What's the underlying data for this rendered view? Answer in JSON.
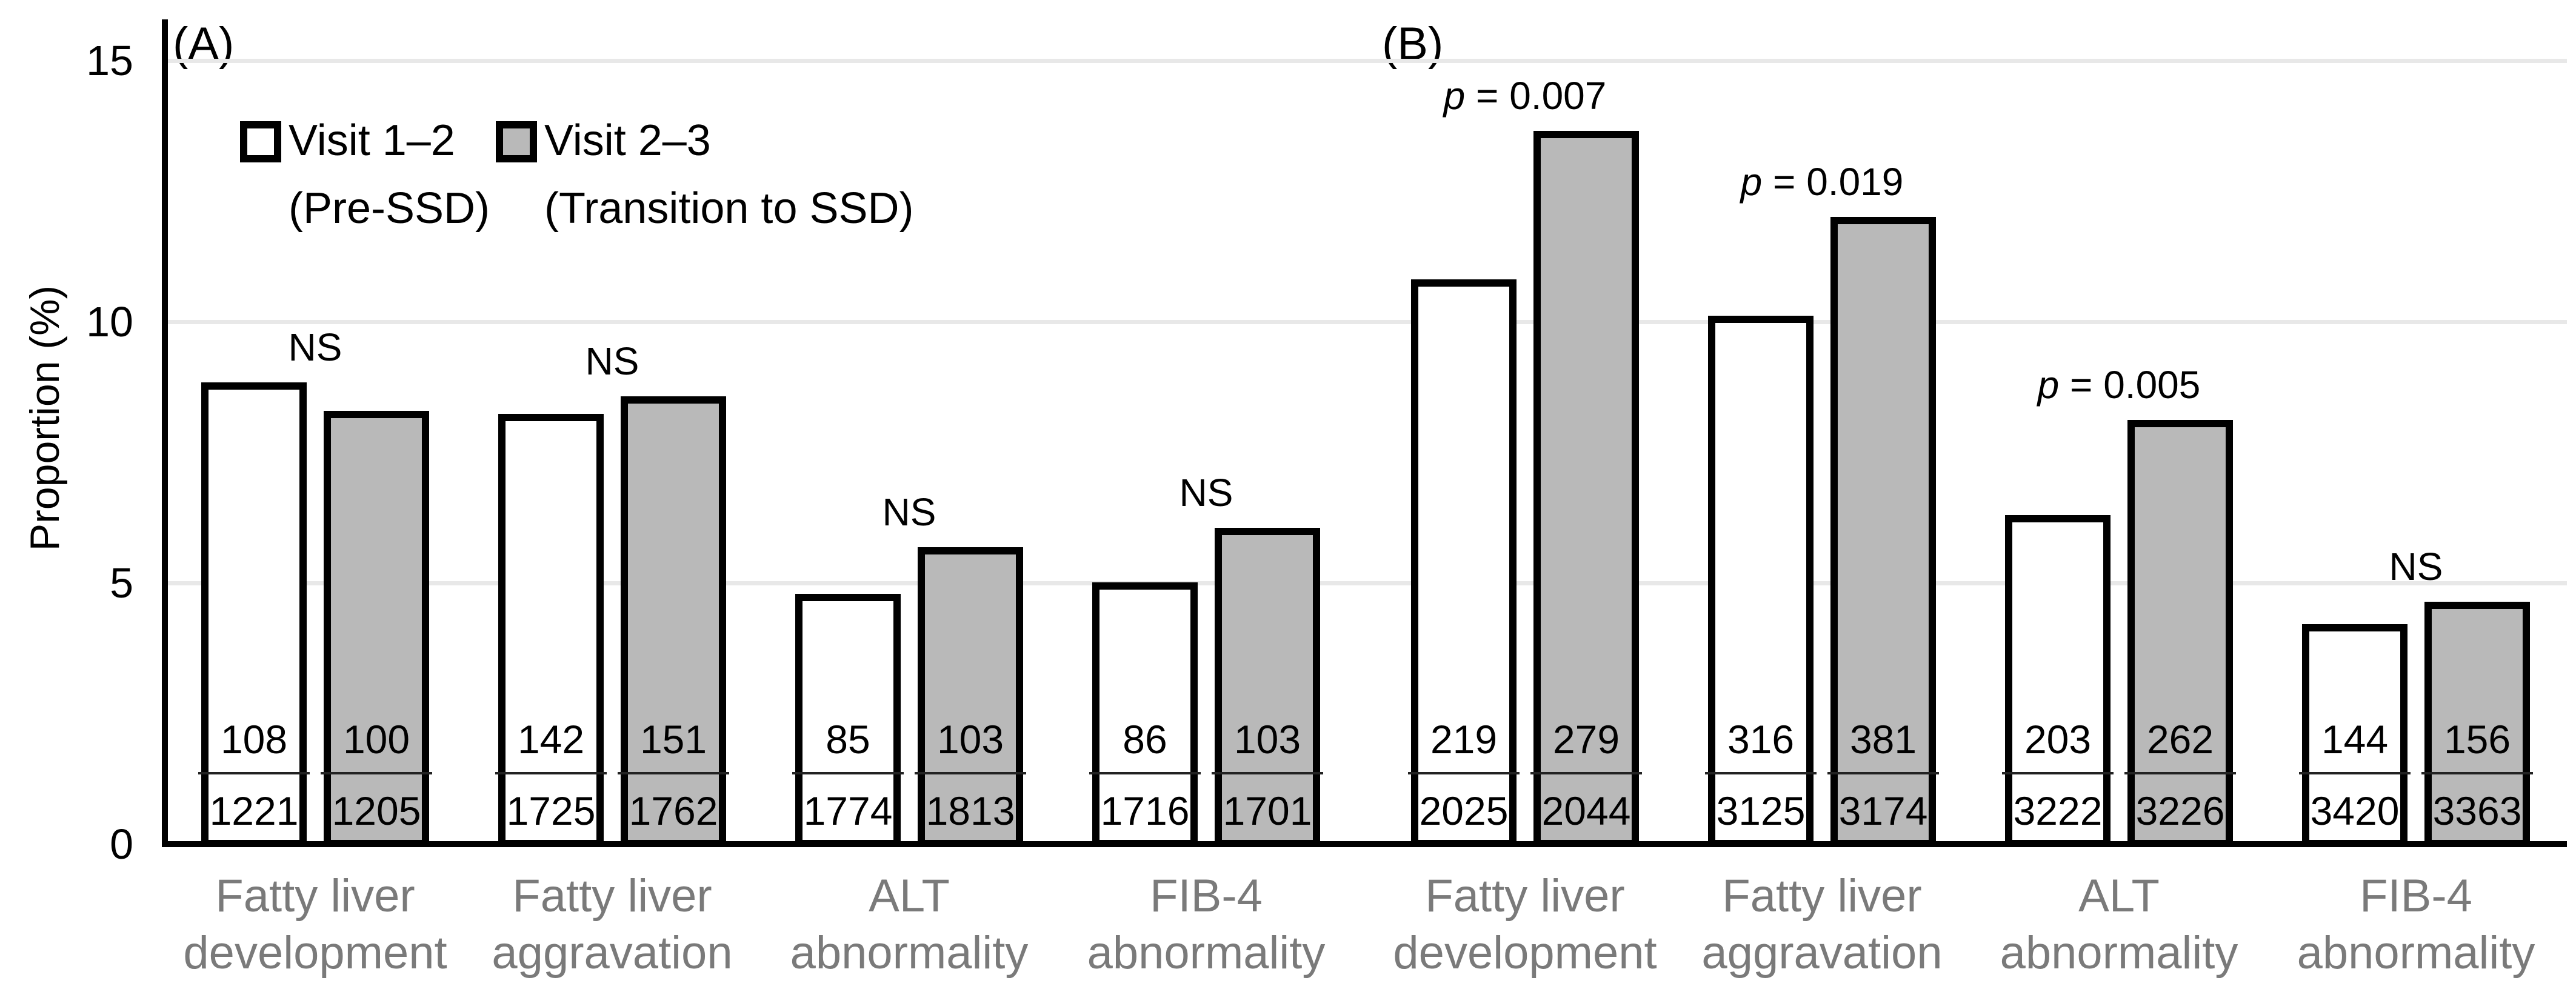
{
  "chart_data": {
    "type": "bar",
    "title": "",
    "xlabel": "",
    "ylabel": "Proportion (%)",
    "ylim": [
      0,
      15
    ],
    "yticks": [
      0,
      5,
      10,
      15
    ],
    "grid": true,
    "legend_position": "top-left",
    "colors": {
      "visit12_fill": "#ffffff",
      "visit23_fill": "#b9b9b9",
      "bar_border": "#000000",
      "gridline": "#e8e8e8",
      "axis": "#000000",
      "category_label": "#7a7a7a",
      "text": "#000000"
    },
    "legend": {
      "items": [
        {
          "label": "Visit 1–2",
          "sublabel": "(Pre-SSD)",
          "fill": "#ffffff"
        },
        {
          "label": "Visit 2–3",
          "sublabel": "(Transition to SSD)",
          "fill": "#b9b9b9"
        }
      ]
    },
    "panels": [
      {
        "label": "(A)",
        "groups": [
          {
            "category_lines": [
              "Fatty liver",
              "development"
            ],
            "significance": "NS",
            "bars": [
              {
                "series": "Visit 1–2",
                "numerator": 108,
                "denominator": 1221,
                "pct": 8.85
              },
              {
                "series": "Visit 2–3",
                "numerator": 100,
                "denominator": 1205,
                "pct": 8.3
              }
            ]
          },
          {
            "category_lines": [
              "Fatty liver",
              "aggravation"
            ],
            "significance": "NS",
            "bars": [
              {
                "series": "Visit 1–2",
                "numerator": 142,
                "denominator": 1725,
                "pct": 8.23
              },
              {
                "series": "Visit 2–3",
                "numerator": 151,
                "denominator": 1762,
                "pct": 8.57
              }
            ]
          },
          {
            "category_lines": [
              "ALT",
              "abnormality"
            ],
            "significance": "NS",
            "bars": [
              {
                "series": "Visit 1–2",
                "numerator": 85,
                "denominator": 1774,
                "pct": 4.79
              },
              {
                "series": "Visit 2–3",
                "numerator": 103,
                "denominator": 1813,
                "pct": 5.68
              }
            ]
          },
          {
            "category_lines": [
              "FIB-4",
              "abnormality"
            ],
            "significance": "NS",
            "bars": [
              {
                "series": "Visit 1–2",
                "numerator": 86,
                "denominator": 1716,
                "pct": 5.01
              },
              {
                "series": "Visit 2–3",
                "numerator": 103,
                "denominator": 1701,
                "pct": 6.06
              }
            ]
          }
        ]
      },
      {
        "label": "(B)",
        "groups": [
          {
            "category_lines": [
              "Fatty liver",
              "development"
            ],
            "significance": "p = 0.007",
            "bars": [
              {
                "series": "Visit 1–2",
                "numerator": 219,
                "denominator": 2025,
                "pct": 10.81
              },
              {
                "series": "Visit 2–3",
                "numerator": 279,
                "denominator": 2044,
                "pct": 13.65
              }
            ]
          },
          {
            "category_lines": [
              "Fatty liver",
              "aggravation"
            ],
            "significance": "p = 0.019",
            "bars": [
              {
                "series": "Visit 1–2",
                "numerator": 316,
                "denominator": 3125,
                "pct": 10.11
              },
              {
                "series": "Visit 2–3",
                "numerator": 381,
                "denominator": 3174,
                "pct": 12.0
              }
            ]
          },
          {
            "category_lines": [
              "ALT",
              "abnormality"
            ],
            "significance": "p = 0.005",
            "bars": [
              {
                "series": "Visit 1–2",
                "numerator": 203,
                "denominator": 3222,
                "pct": 6.3
              },
              {
                "series": "Visit 2–3",
                "numerator": 262,
                "denominator": 3226,
                "pct": 8.12
              }
            ]
          },
          {
            "category_lines": [
              "FIB-4",
              "abnormality"
            ],
            "significance": "NS",
            "bars": [
              {
                "series": "Visit 1–2",
                "numerator": 144,
                "denominator": 3420,
                "pct": 4.21
              },
              {
                "series": "Visit 2–3",
                "numerator": 156,
                "denominator": 3363,
                "pct": 4.64
              }
            ]
          }
        ]
      }
    ]
  }
}
